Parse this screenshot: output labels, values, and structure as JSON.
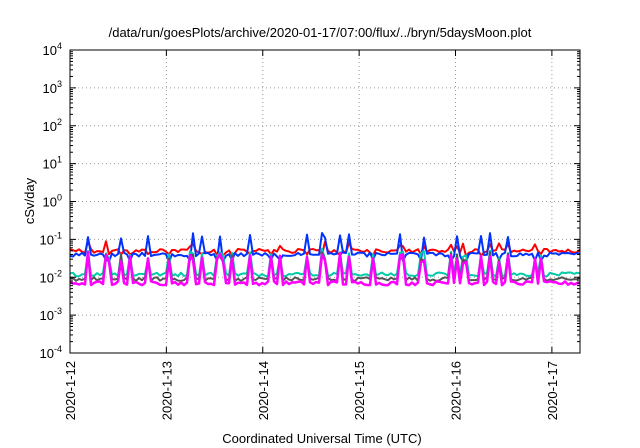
{
  "chart_data": {
    "type": "line",
    "title": "/data/run/goesPlots/archive/2020-01-17/07:00/flux/../bryn/5daysMoon.plot",
    "xlabel": "Coordinated Universal Time (UTC)",
    "ylabel": "cSv/day",
    "y_scale": "log",
    "ylim": [
      0.0001,
      10000
    ],
    "y_ticks": [
      {
        "base": "10",
        "exp": "-4"
      },
      {
        "base": "10",
        "exp": "-3"
      },
      {
        "base": "10",
        "exp": "-2"
      },
      {
        "base": "10",
        "exp": "-1"
      },
      {
        "base": "10",
        "exp": "0"
      },
      {
        "base": "10",
        "exp": "1"
      },
      {
        "base": "10",
        "exp": "2"
      },
      {
        "base": "10",
        "exp": "3"
      },
      {
        "base": "10",
        "exp": "4"
      }
    ],
    "x_ticks": [
      "2020-1-12",
      "2020-1-13",
      "2020-1-14",
      "2020-1-15",
      "2020-1-16",
      "2020-1-17"
    ],
    "xlim": [
      "2020-01-12T00:00",
      "2020-01-17T07:00"
    ],
    "grid": true,
    "series": [
      {
        "color": "#ff0000",
        "typical_value": 0.05,
        "spike_max": 0.09,
        "dip_min": 0.035
      },
      {
        "color": "#0033ff",
        "typical_value": 0.04,
        "spike_max": 0.15,
        "dip_min": 0.025
      },
      {
        "color": "#00ccaa",
        "typical_value": 0.012,
        "spike_max": 0.06,
        "dip_min": 0.008
      },
      {
        "color": "#555555",
        "typical_value": 0.009,
        "spike_max": 0.05,
        "dip_min": 0.006
      },
      {
        "color": "#ff00ff",
        "typical_value": 0.007,
        "spike_max": 0.05,
        "dip_min": 0.004
      }
    ]
  }
}
